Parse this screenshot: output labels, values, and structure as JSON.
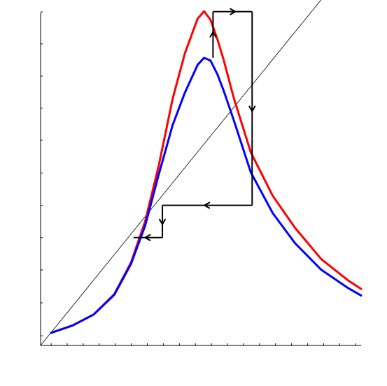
{
  "chart_data": {
    "type": "line",
    "title": "",
    "xlabel": "",
    "ylabel": "",
    "xlim": [
      0,
      10
    ],
    "ylim": [
      0,
      10
    ],
    "x_ticks": [
      0.33,
      0.83,
      1.33,
      1.83,
      2.33,
      2.83,
      3.33,
      3.83,
      4.33,
      4.83,
      5.33,
      5.83,
      6.33,
      6.83,
      7.33,
      7.83,
      8.33,
      8.83,
      9.33,
      9.83
    ],
    "y_ticks": [
      0.29,
      1.28,
      2.27,
      3.24,
      4.21,
      5.18,
      6.17,
      7.13,
      8.09,
      9.06,
      10.02
    ],
    "grid": false,
    "legend": "none",
    "series": [
      {
        "role": "identity-line",
        "color": "#000000",
        "x": [
          0,
          8.85
        ],
        "y": [
          0,
          10.5
        ]
      },
      {
        "role": "curve",
        "color": "#ff0000",
        "x": [
          0.33,
          1,
          1.66,
          2.3,
          2.82,
          3.26,
          3.68,
          4.12,
          4.5,
          4.9,
          5.1,
          5.3,
          5.52,
          5.72,
          6.02,
          6.56,
          7.24,
          7.94,
          8.76,
          9.6,
          10.0
        ],
        "y": [
          0.38,
          0.6,
          0.93,
          1.54,
          2.49,
          3.72,
          5.37,
          7.41,
          8.77,
          9.82,
          10.04,
          9.79,
          9.19,
          8.55,
          7.46,
          5.8,
          4.5,
          3.53,
          2.59,
          1.95,
          1.7
        ]
      },
      {
        "role": "curve",
        "color": "#0000ff",
        "x": [
          0.33,
          1,
          1.66,
          2.3,
          2.82,
          3.26,
          3.68,
          4.12,
          4.5,
          4.9,
          5.1,
          5.3,
          5.52,
          5.72,
          6.02,
          6.56,
          7.24,
          7.94,
          8.76,
          9.6,
          10.0
        ],
        "y": [
          0.38,
          0.6,
          0.93,
          1.52,
          2.45,
          3.59,
          5.11,
          6.62,
          7.59,
          8.43,
          8.64,
          8.56,
          8.14,
          7.63,
          6.79,
          5.2,
          3.98,
          3.07,
          2.27,
          1.72,
          1.5
        ]
      }
    ],
    "cobweb": {
      "color": "#000000",
      "segments": [
        {
          "from": [
            3.8,
            4.21
          ],
          "to": [
            3.8,
            3.24
          ],
          "arrow": true
        },
        {
          "from": [
            3.8,
            3.24
          ],
          "to": [
            2.9,
            3.24
          ],
          "arrow": true
        },
        {
          "from": [
            5.38,
            8.64
          ],
          "to": [
            5.38,
            10.03
          ],
          "arrow": true
        },
        {
          "from": [
            5.38,
            10.03
          ],
          "to": [
            6.6,
            10.03
          ],
          "arrow": true
        },
        {
          "from": [
            6.6,
            10.03
          ],
          "to": [
            6.6,
            4.21
          ],
          "arrow": true
        },
        {
          "from": [
            6.6,
            4.21
          ],
          "to": [
            3.8,
            4.21
          ],
          "arrow": true
        }
      ]
    }
  }
}
